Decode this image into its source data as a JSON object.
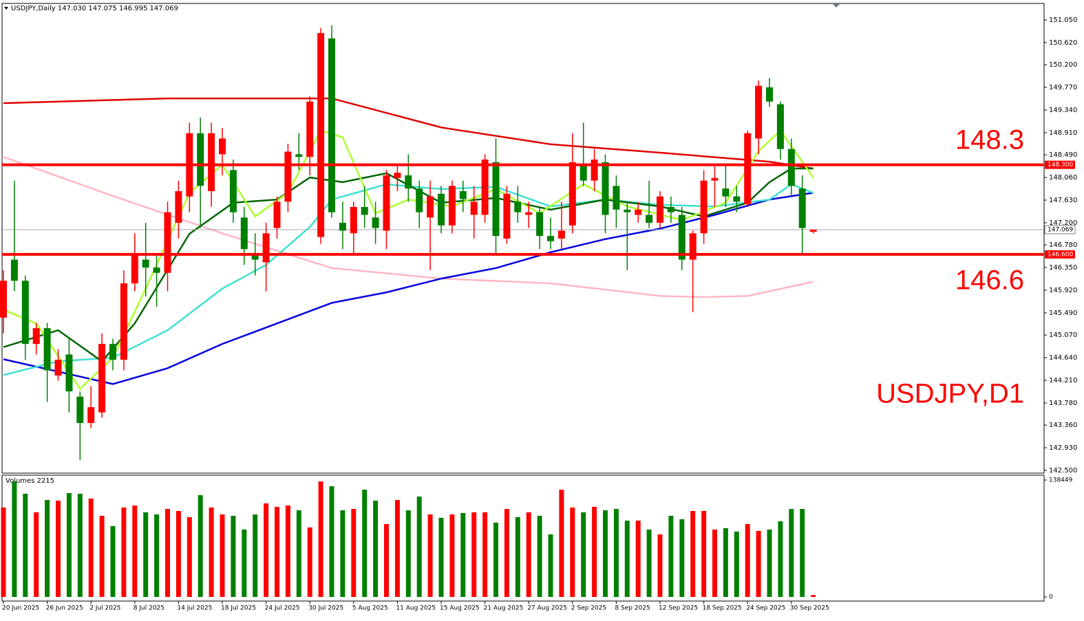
{
  "chart_data": [
    {
      "type": "candlestick",
      "title": "USDJPY,Daily 147.030 147.075 146.995 147.069",
      "up_color": "#ff0000",
      "down_color": "#008000",
      "categories": [
        "20 Jun 2025",
        null,
        null,
        null,
        "26 Jun 2025",
        null,
        null,
        null,
        "2 Jul 2025",
        null,
        null,
        null,
        "8 Jul 2025",
        null,
        null,
        null,
        "14 Jul 2025",
        null,
        null,
        null,
        "18 Jul 2025",
        null,
        null,
        null,
        "24 Jul 2025",
        null,
        null,
        null,
        "30 Jul 2025",
        null,
        null,
        null,
        "5 Aug 2025",
        null,
        null,
        null,
        "11 Aug 2025",
        null,
        null,
        null,
        "15 Aug 2025",
        null,
        null,
        null,
        "21 Aug 2025",
        null,
        null,
        null,
        "27 Aug 2025",
        null,
        null,
        null,
        "2 Sep 2025",
        null,
        null,
        null,
        "8 Sep 2025",
        null,
        null,
        null,
        "12 Sep 2025",
        null,
        null,
        null,
        "18 Sep 2025",
        null,
        null,
        null,
        "24 Sep 2025",
        null,
        null,
        null,
        "30 Sep 2025",
        null,
        null
      ],
      "open": [
        145.4,
        146.5,
        146.1,
        144.9,
        145.2,
        144.3,
        144.7,
        143.9,
        143.4,
        143.6,
        144.9,
        144.6,
        146.05,
        146.5,
        146.35,
        146.25,
        147.2,
        147.7,
        148.9,
        147.8,
        148.5,
        148.2,
        147.3,
        146.6,
        146.45,
        147.1,
        147.6,
        148.5,
        148.45,
        146.93,
        150.7,
        147.2,
        147.0,
        147.5,
        147.3,
        147.05,
        148.05,
        148.1,
        147.85,
        147.3,
        147.75,
        147.15,
        147.8,
        147.35,
        147.35,
        148.35,
        146.9,
        147.6,
        147.35,
        147.4,
        146.95,
        146.9,
        147.15,
        148.3,
        148.0,
        148.35,
        147.9,
        147.45,
        147.35,
        147.35,
        147.2,
        147.5,
        147.35,
        146.5,
        147.0,
        148.0,
        147.85,
        147.7,
        147.55,
        148.8,
        149.77,
        149.45,
        148.6,
        147.85,
        147.03
      ],
      "high": [
        146.3,
        148.0,
        146.2,
        145.3,
        145.3,
        144.8,
        145.0,
        144.0,
        144.1,
        145.1,
        145.0,
        146.3,
        147.0,
        147.2,
        146.6,
        147.6,
        148.0,
        149.1,
        149.2,
        149.1,
        149.0,
        148.4,
        147.5,
        147.0,
        147.2,
        147.7,
        148.7,
        148.9,
        149.6,
        150.9,
        150.95,
        147.6,
        147.6,
        147.9,
        147.6,
        148.2,
        148.3,
        148.5,
        148.0,
        148.0,
        147.9,
        148.0,
        148.0,
        147.9,
        148.5,
        148.8,
        147.9,
        147.9,
        147.6,
        147.5,
        147.3,
        147.6,
        148.9,
        149.1,
        148.6,
        148.5,
        148.1,
        147.6,
        147.6,
        148.0,
        147.8,
        147.7,
        147.5,
        147.05,
        148.2,
        148.3,
        148.3,
        147.9,
        148.95,
        149.9,
        149.95,
        149.5,
        148.8,
        148.1,
        147.075
      ],
      "low": [
        145.1,
        145.9,
        144.6,
        144.7,
        143.8,
        144.2,
        143.6,
        142.7,
        143.3,
        143.5,
        144.4,
        144.4,
        145.9,
        145.8,
        145.6,
        145.9,
        146.9,
        147.4,
        147.1,
        147.5,
        148.1,
        147.2,
        146.4,
        146.2,
        145.9,
        146.9,
        147.4,
        148.2,
        148.1,
        146.8,
        147.3,
        146.7,
        146.6,
        147.1,
        146.8,
        146.7,
        147.8,
        147.6,
        147.1,
        146.3,
        147.0,
        147.0,
        147.4,
        146.9,
        147.2,
        146.6,
        146.8,
        147.2,
        147.1,
        146.7,
        146.7,
        146.7,
        147.0,
        147.9,
        147.8,
        147.0,
        147.1,
        146.3,
        147.2,
        147.1,
        147.1,
        147.2,
        146.3,
        145.5,
        146.8,
        147.5,
        147.5,
        147.4,
        147.5,
        148.5,
        149.4,
        148.4,
        147.7,
        146.6,
        146.995
      ],
      "close": [
        146.1,
        146.1,
        144.9,
        145.2,
        144.4,
        144.6,
        144.0,
        143.4,
        143.7,
        144.9,
        144.6,
        146.05,
        146.6,
        146.35,
        146.25,
        147.4,
        147.8,
        148.9,
        147.9,
        148.9,
        148.8,
        147.4,
        146.7,
        146.5,
        147.0,
        147.6,
        148.55,
        148.45,
        149.5,
        150.8,
        147.4,
        147.05,
        147.5,
        147.35,
        147.1,
        148.1,
        148.15,
        147.85,
        147.4,
        147.7,
        147.15,
        147.9,
        147.65,
        147.6,
        148.4,
        146.95,
        147.75,
        147.4,
        147.4,
        146.95,
        146.85,
        147.05,
        148.35,
        148.0,
        148.4,
        147.35,
        147.45,
        147.4,
        147.45,
        147.2,
        147.7,
        147.4,
        146.5,
        147.0,
        148.0,
        148.05,
        147.7,
        147.6,
        148.9,
        149.8,
        149.5,
        148.6,
        147.9,
        147.1,
        147.069
      ],
      "series": [
        {
          "color": "#e00000",
          "x": [
            0,
            15,
            30,
            40,
            50,
            60,
            70,
            74
          ],
          "values": [
            149.47,
            149.56,
            149.56,
            149.01,
            148.69,
            148.53,
            148.36,
            148.23
          ]
        },
        {
          "color": "#ffb6c1",
          "x": [
            0,
            10,
            20,
            30,
            40,
            50,
            60,
            64,
            68,
            74
          ],
          "values": [
            148.45,
            147.71,
            147.0,
            146.34,
            146.14,
            146.05,
            145.81,
            145.79,
            145.81,
            146.08
          ]
        },
        {
          "color": "#0000e0",
          "x": [
            0,
            10,
            15,
            20,
            25,
            30,
            35,
            40,
            45,
            50,
            55,
            60,
            65,
            70,
            74
          ],
          "values": [
            144.61,
            144.14,
            144.44,
            144.9,
            145.29,
            145.68,
            145.88,
            146.14,
            146.34,
            146.64,
            146.89,
            147.09,
            147.35,
            147.64,
            147.77
          ]
        },
        {
          "color": "#40e0d0",
          "x": [
            0,
            5,
            10,
            15,
            20,
            24,
            28,
            30,
            35,
            40,
            45,
            50,
            55,
            60,
            65,
            70,
            72,
            74
          ],
          "values": [
            144.31,
            144.57,
            144.64,
            145.16,
            145.95,
            146.4,
            147.12,
            147.64,
            147.93,
            147.84,
            147.88,
            147.51,
            147.64,
            147.54,
            147.51,
            147.64,
            147.93,
            147.77
          ]
        },
        {
          "color": "#006400",
          "x": [
            0,
            5,
            9,
            12,
            17,
            21,
            25,
            28,
            31,
            35,
            40,
            45,
            50,
            55,
            60,
            64,
            68,
            70,
            72,
            74
          ],
          "values": [
            144.84,
            145.16,
            144.57,
            145.29,
            146.99,
            147.58,
            147.64,
            148.06,
            147.97,
            148.14,
            147.58,
            147.67,
            147.45,
            147.64,
            147.51,
            147.32,
            147.58,
            147.97,
            148.23,
            148.23
          ]
        },
        {
          "color": "#adff2f",
          "x": [
            0,
            3,
            7,
            10,
            13,
            17,
            20,
            23,
            26,
            29,
            31,
            34,
            37,
            41,
            45,
            49,
            53,
            57,
            62,
            66,
            69,
            71,
            74
          ],
          "values": [
            145.55,
            145.29,
            144.05,
            144.64,
            145.95,
            147.77,
            148.3,
            147.32,
            147.77,
            148.95,
            148.82,
            147.38,
            147.64,
            147.51,
            147.84,
            147.38,
            147.93,
            147.51,
            147.25,
            147.58,
            148.56,
            148.95,
            148.06
          ]
        }
      ],
      "hlines": [
        {
          "value": 148.3,
          "label": "148.300",
          "color": "#ff0000"
        },
        {
          "value": 146.6,
          "label": "146.600",
          "color": "#ff0000"
        }
      ],
      "last_price": {
        "value": 147.069,
        "label": "147.069"
      },
      "annotations": [
        "148.3",
        "146.6",
        "USDJPY,D1"
      ],
      "ylim": [
        142.448,
        151.363
      ],
      "yticks": [
        {
          "value": 151.05,
          "label": "151.050"
        },
        {
          "value": 150.62,
          "label": "150.620"
        },
        {
          "value": 150.2,
          "label": "150.200"
        },
        {
          "value": 149.77,
          "label": "149.770"
        },
        {
          "value": 149.34,
          "label": "149.340"
        },
        {
          "value": 148.91,
          "label": "148.910"
        },
        {
          "value": 148.49,
          "label": "148.490"
        },
        {
          "value": 148.06,
          "label": "148.060"
        },
        {
          "value": 147.63,
          "label": "147.630"
        },
        {
          "value": 147.2,
          "label": "147.200"
        },
        {
          "value": 146.78,
          "label": "146.780"
        },
        {
          "value": 146.35,
          "label": "146.350"
        },
        {
          "value": 145.92,
          "label": "145.920"
        },
        {
          "value": 145.49,
          "label": "145.490"
        },
        {
          "value": 145.07,
          "label": "145.070"
        },
        {
          "value": 144.64,
          "label": "144.640"
        },
        {
          "value": 144.21,
          "label": "144.210"
        },
        {
          "value": 143.78,
          "label": "143.780"
        },
        {
          "value": 143.36,
          "label": "143.360"
        },
        {
          "value": 142.93,
          "label": "142.930"
        },
        {
          "value": 142.5,
          "label": "142.500"
        }
      ]
    },
    {
      "type": "bar",
      "title": "Volumes 2215",
      "values": [
        105900,
        136800,
        122200,
        100200,
        114800,
        114000,
        123000,
        122200,
        116500,
        96100,
        83900,
        105900,
        108300,
        100200,
        97700,
        104200,
        101800,
        94500,
        120500,
        105900,
        97700,
        96100,
        79800,
        97700,
        110800,
        106700,
        108300,
        102600,
        82300,
        136800,
        131100,
        102600,
        104200,
        127000,
        114000,
        86300,
        114800,
        102600,
        118900,
        97700,
        93700,
        97700,
        99400,
        100200,
        100200,
        88000,
        104200,
        94500,
        100200,
        96100,
        74100,
        127000,
        105900,
        100200,
        106700,
        102600,
        104200,
        90400,
        90400,
        79800,
        74100,
        96100,
        92000,
        101800,
        101800,
        79800,
        81400,
        77400,
        86300,
        78200,
        79800,
        89600,
        104200,
        104200,
        2215
      ],
      "ylim": [
        0,
        138449
      ],
      "yticks": [
        0,
        138449
      ]
    }
  ]
}
